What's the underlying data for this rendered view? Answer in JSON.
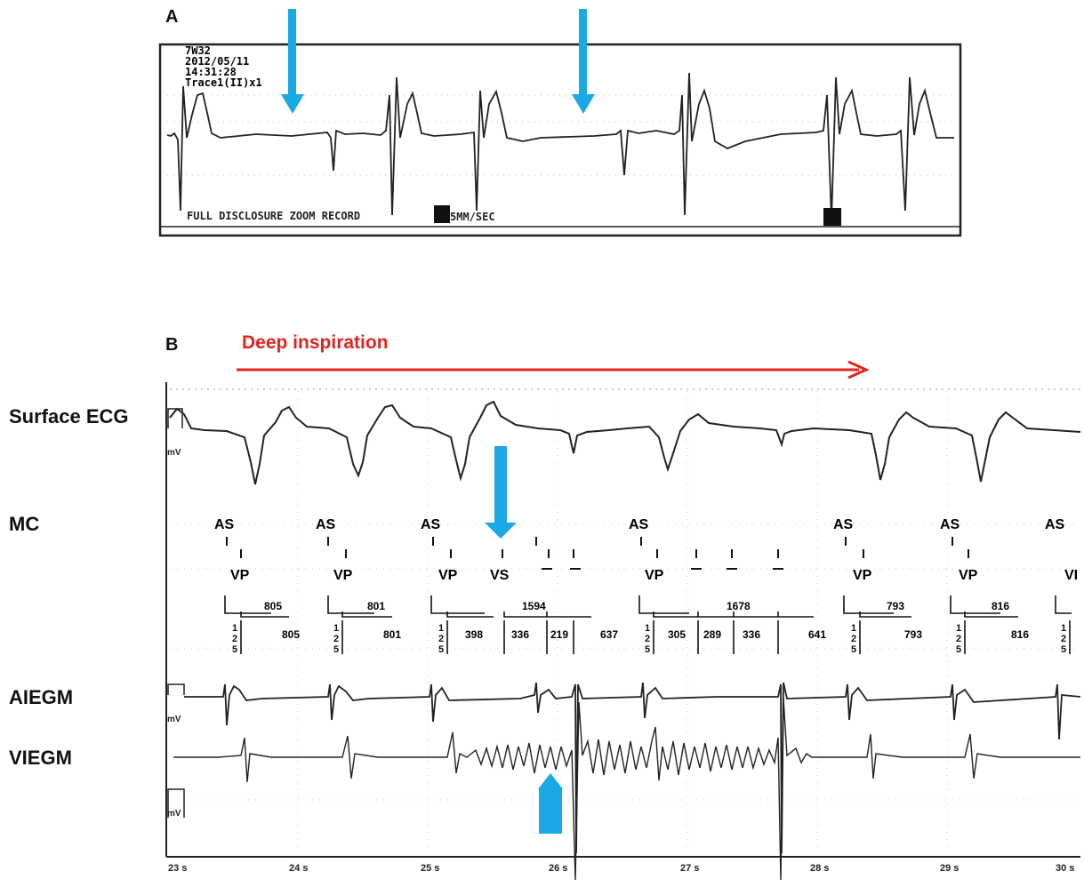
{
  "panel_a": {
    "label": "A",
    "header_lines": [
      "7W32",
      "2012/05/11",
      "14:31:28",
      "Trace1(II)x1"
    ],
    "footer_left": "FULL DISCLOSURE ZOOM RECORD",
    "footer_speed": "5MM/SEC",
    "arrow_color": "#1aa8e6"
  },
  "panel_b": {
    "label": "B",
    "annotation": "Deep inspiration",
    "annotation_color": "#e0241f",
    "channels": {
      "surface_ecg": "Surface ECG",
      "mc": "MC",
      "aiegm": "AIEGM",
      "viegm": "VIEGM"
    },
    "scale_label": "mV",
    "markers": {
      "as": "AS",
      "vp": "VP",
      "vs": "VS",
      "last_partial": "VI"
    },
    "interval_top": [
      "805",
      "801",
      "1594",
      "1678",
      "793",
      "816"
    ],
    "interval_bottom": [
      "805",
      "801",
      "398",
      "336",
      "219",
      "637",
      "305",
      "289",
      "336",
      "641",
      "793",
      "816"
    ],
    "pad_digits": [
      "1",
      "2",
      "5"
    ],
    "time_axis": [
      "23 s",
      "24 s",
      "25 s",
      "26 s",
      "27 s",
      "28 s",
      "29 s",
      "30 s"
    ]
  }
}
